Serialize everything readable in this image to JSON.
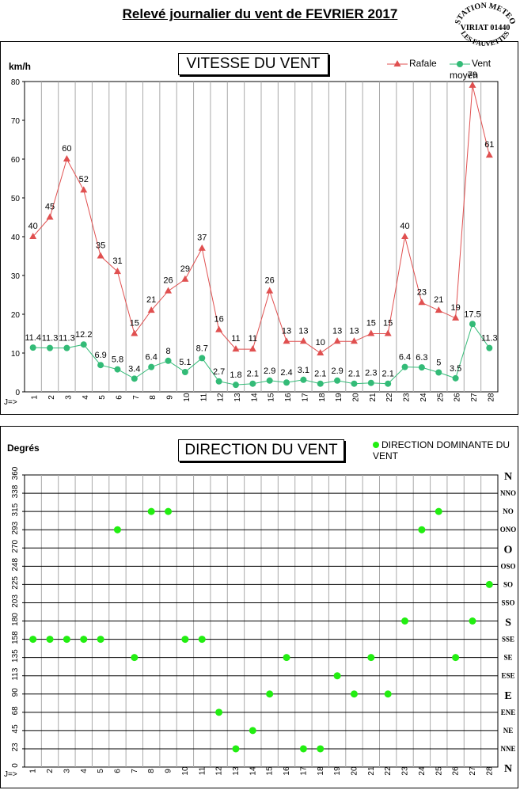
{
  "title": "Relevé journalier du vent de FEVRIER 2017",
  "stamp": {
    "top": "STATION METEO",
    "middle": "VIRIAT 01440",
    "bottom": "LES FAUVETTES"
  },
  "speed_panel": {
    "title": "VITESSE DU VENT",
    "unit": "km/h",
    "legend_gust": "Rafale",
    "legend_avg": "Vent moyen",
    "x_prefix": "J=>"
  },
  "dir_panel": {
    "title": "DIRECTION DU VENT",
    "unit": "Degrés",
    "legend": "DIRECTION DOMINANTE DU VENT",
    "x_prefix": "J=>"
  },
  "colors": {
    "gust": "#e05050",
    "avg": "#33bb77",
    "direction_dot": "#22ee11"
  },
  "chart_data": [
    {
      "type": "line",
      "title": "VITESSE DU VENT",
      "ylabel": "km/h",
      "xlabel": "J=>",
      "ylim": [
        0,
        80
      ],
      "yticks": [
        0,
        10,
        20,
        30,
        40,
        50,
        60,
        70,
        80
      ],
      "x": [
        1,
        2,
        3,
        4,
        5,
        6,
        7,
        8,
        9,
        10,
        11,
        12,
        13,
        14,
        15,
        16,
        17,
        18,
        19,
        20,
        21,
        22,
        23,
        24,
        25,
        26,
        27,
        28
      ],
      "series": [
        {
          "name": "Rafale",
          "marker": "triangle",
          "values": [
            40,
            45,
            60,
            52,
            35,
            31,
            15,
            21,
            26,
            29,
            37,
            16,
            11,
            11,
            26,
            13,
            13,
            10,
            13,
            13,
            15,
            15,
            40,
            23,
            21,
            19,
            79,
            61
          ]
        },
        {
          "name": "Vent moyen",
          "marker": "circle",
          "values": [
            11.4,
            11.3,
            11.3,
            12.2,
            6.9,
            5.8,
            3.4,
            6.4,
            8,
            5.1,
            8.7,
            2.7,
            1.8,
            2.1,
            2.9,
            2.4,
            3.1,
            2.1,
            2.9,
            2.1,
            2.3,
            2.1,
            6.4,
            6.3,
            5,
            3.5,
            17.5,
            11.3
          ]
        }
      ],
      "grid": true,
      "legend": "top-right"
    },
    {
      "type": "scatter",
      "title": "DIRECTION DU VENT",
      "ylabel": "Degrés",
      "xlabel": "J=>",
      "ylim": [
        0,
        360
      ],
      "yticks": [
        0,
        23,
        45,
        68,
        90,
        113,
        135,
        158,
        180,
        203,
        225,
        248,
        270,
        293,
        315,
        338,
        360
      ],
      "right_labels": [
        "N",
        "NNE",
        "NE",
        "ENE",
        "E",
        "ESE",
        "SE",
        "SSE",
        "S",
        "SSO",
        "SO",
        "OSO",
        "O",
        "ONO",
        "NO",
        "NNO",
        "N"
      ],
      "x": [
        1,
        2,
        3,
        4,
        5,
        6,
        7,
        8,
        9,
        10,
        11,
        12,
        13,
        14,
        15,
        16,
        17,
        18,
        19,
        20,
        21,
        22,
        23,
        24,
        25,
        26,
        27,
        28
      ],
      "series": [
        {
          "name": "DIRECTION DOMINANTE DU VENT",
          "values": [
            158,
            158,
            158,
            158,
            158,
            293,
            135,
            315,
            315,
            158,
            158,
            68,
            23,
            45,
            90,
            135,
            23,
            23,
            113,
            90,
            135,
            90,
            180,
            293,
            315,
            135,
            180,
            225
          ]
        }
      ],
      "grid": true,
      "legend": "top-right"
    }
  ]
}
